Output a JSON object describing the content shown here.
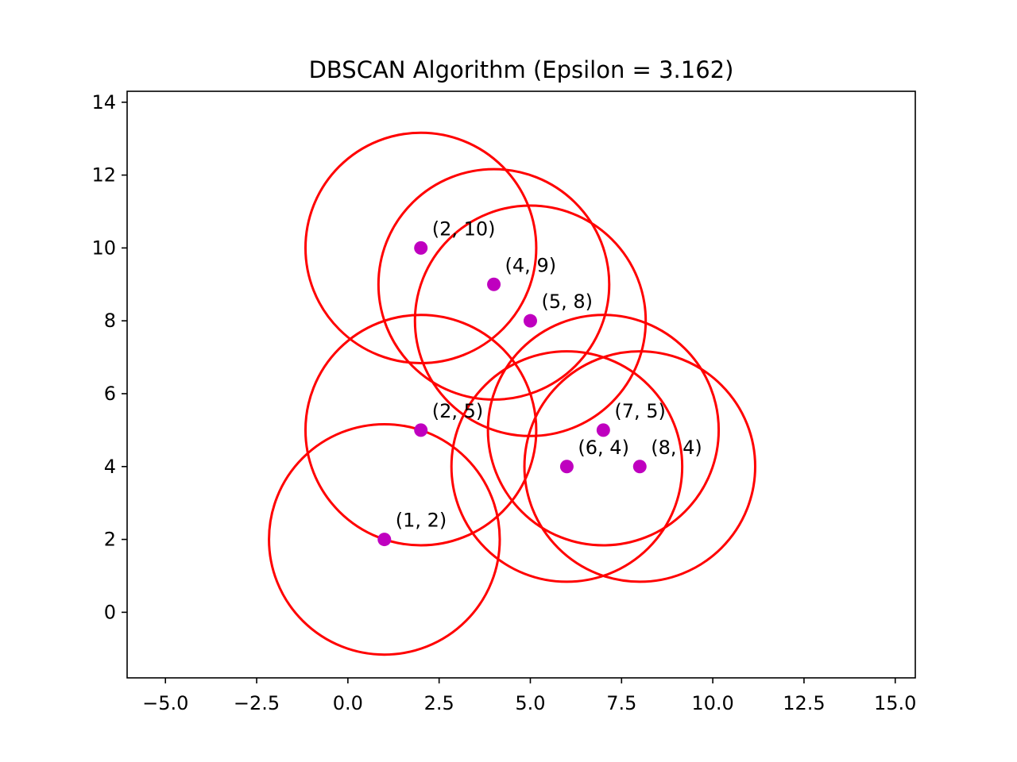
{
  "chart_data": {
    "type": "scatter",
    "title": "DBSCAN Algorithm (Epsilon = 3.162)",
    "xlabel": "",
    "ylabel": "",
    "epsilon": 3.162,
    "xlim": [
      -6.05,
      15.55
    ],
    "ylim": [
      -1.8,
      14.3
    ],
    "x_ticks": [
      -5.0,
      -2.5,
      0.0,
      2.5,
      5.0,
      7.5,
      10.0,
      12.5,
      15.0
    ],
    "x_tick_labels": [
      "−5.0",
      "−2.5",
      "0.0",
      "2.5",
      "5.0",
      "7.5",
      "10.0",
      "12.5",
      "15.0"
    ],
    "y_ticks": [
      0,
      2,
      4,
      6,
      8,
      10,
      12,
      14
    ],
    "y_tick_labels": [
      "0",
      "2",
      "4",
      "6",
      "8",
      "10",
      "12",
      "14"
    ],
    "grid": false,
    "points": [
      {
        "x": 2,
        "y": 10,
        "label": "(2, 10)"
      },
      {
        "x": 4,
        "y": 9,
        "label": "(4, 9)"
      },
      {
        "x": 5,
        "y": 8,
        "label": "(5, 8)"
      },
      {
        "x": 2,
        "y": 5,
        "label": "(2, 5)"
      },
      {
        "x": 7,
        "y": 5,
        "label": "(7, 5)"
      },
      {
        "x": 6,
        "y": 4,
        "label": "(6, 4)"
      },
      {
        "x": 8,
        "y": 4,
        "label": "(8, 4)"
      },
      {
        "x": 1,
        "y": 2,
        "label": "(1, 2)"
      }
    ],
    "point_color": "#bf00bf",
    "circle_color": "#ff0000"
  }
}
